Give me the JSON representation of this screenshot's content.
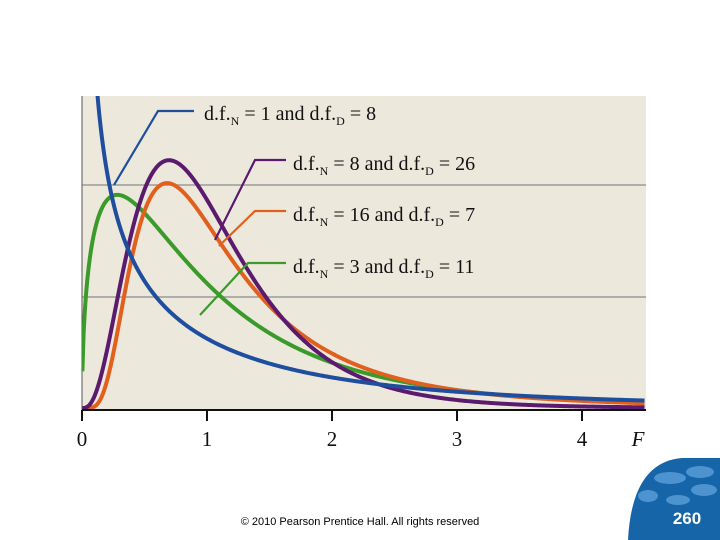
{
  "chart_data": {
    "type": "line",
    "title": "",
    "xlabel": "F",
    "ylabel": "",
    "xlim": [
      0,
      4.5
    ],
    "xticks": [
      "0",
      "1",
      "2",
      "3",
      "4"
    ],
    "grid": "horizontal",
    "legend": "callout labels with leader lines",
    "background_color": "#ede8dc",
    "series": [
      {
        "name": "d.f.N = 1 and d.f.D = 8",
        "label_parts": [
          "d.f.",
          "N",
          " = 1 and d.f.",
          "D",
          " = 8"
        ],
        "df_num": 1,
        "df_den": 8,
        "color": "#1f4e9e",
        "x": [
          0.02,
          0.05,
          0.1,
          0.2,
          0.3,
          0.5,
          0.75,
          1.0,
          1.5,
          2.0,
          2.5,
          3.0,
          3.5,
          4.0,
          4.5
        ],
        "y": [
          2.78,
          1.75,
          1.22,
          0.83,
          0.65,
          0.46,
          0.33,
          0.26,
          0.17,
          0.12,
          0.085,
          0.063,
          0.048,
          0.037,
          0.03
        ]
      },
      {
        "name": "d.f.N = 8 and d.f.D = 26",
        "label_parts": [
          "d.f.",
          "N",
          " = 8 and d.f.",
          "D",
          " = 26"
        ],
        "df_num": 8,
        "df_den": 26,
        "color": "#5a1a6e",
        "x": [
          0.2,
          0.4,
          0.6,
          0.8,
          1.0,
          1.2,
          1.5,
          2.0,
          2.5,
          3.0,
          3.5,
          4.0
        ],
        "y": [
          0.03,
          0.32,
          0.67,
          0.77,
          0.62,
          0.42,
          0.2,
          0.055,
          0.015,
          0.004,
          0.001,
          0.0003
        ]
      },
      {
        "name": "d.f.N = 16 and d.f.D = 7",
        "label_parts": [
          "d.f.",
          "N",
          " = 16 and d.f.",
          "D",
          " = 7"
        ],
        "df_num": 16,
        "df_den": 7,
        "color": "#e2601e",
        "x": [
          0.2,
          0.4,
          0.6,
          0.8,
          1.0,
          1.2,
          1.5,
          2.0,
          2.5,
          3.0,
          3.5,
          4.0,
          4.5
        ],
        "y": [
          0.01,
          0.26,
          0.62,
          0.73,
          0.64,
          0.47,
          0.29,
          0.13,
          0.065,
          0.035,
          0.02,
          0.012,
          0.008
        ]
      },
      {
        "name": "d.f.N = 3 and d.f.D = 11",
        "label_parts": [
          "d.f.",
          "N",
          " = 3 and d.f.",
          "D",
          " = 11"
        ],
        "df_num": 3,
        "df_den": 11,
        "color": "#3a9b2a",
        "x": [
          0.05,
          0.1,
          0.2,
          0.3,
          0.4,
          0.5,
          0.75,
          1.0,
          1.5,
          2.0,
          2.5,
          3.0,
          3.5,
          4.0,
          4.5
        ],
        "y": [
          0.3,
          0.45,
          0.6,
          0.66,
          0.67,
          0.65,
          0.54,
          0.42,
          0.23,
          0.13,
          0.072,
          0.042,
          0.025,
          0.016,
          0.01
        ]
      }
    ]
  },
  "footer": {
    "copyright": "© 2010 Pearson Prentice Hall. All rights reserved",
    "page_number": "260"
  }
}
